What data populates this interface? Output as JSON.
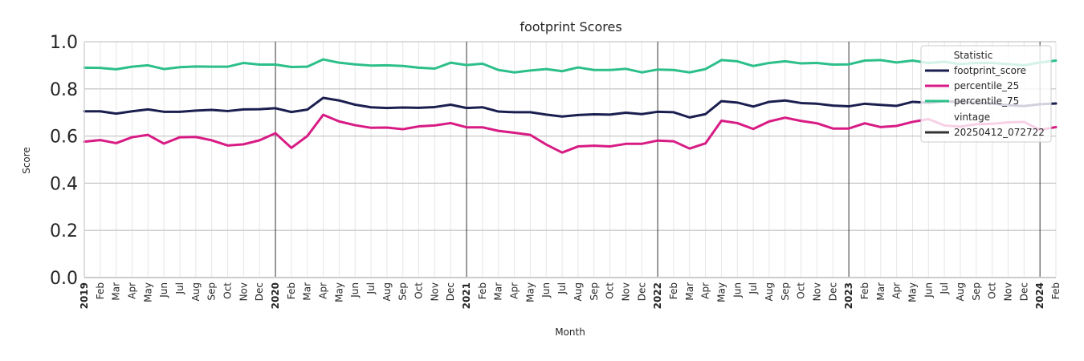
{
  "chart_data": {
    "type": "line",
    "title": "footprint Scores",
    "xlabel": "Month",
    "ylabel": "Score",
    "ylim": [
      0,
      1
    ],
    "yticks": [
      "0.0",
      "0.2",
      "0.4",
      "0.6",
      "0.8",
      "1.0"
    ],
    "grid": true,
    "legend_position": "top-right",
    "x": [
      "2019",
      "Feb",
      "Mar",
      "Apr",
      "May",
      "Jun",
      "Jul",
      "Aug",
      "Sep",
      "Oct",
      "Nov",
      "Dec",
      "2020",
      "Feb",
      "Mar",
      "Apr",
      "May",
      "Jun",
      "Jul",
      "Aug",
      "Sep",
      "Oct",
      "Nov",
      "Dec",
      "2021",
      "Feb",
      "Mar",
      "Apr",
      "May",
      "Jun",
      "Jul",
      "Aug",
      "Sep",
      "Oct",
      "Nov",
      "Dec",
      "2022",
      "Feb",
      "Mar",
      "Apr",
      "May",
      "Jun",
      "Jul",
      "Aug",
      "Sep",
      "Oct",
      "Nov",
      "Dec",
      "2023",
      "Feb",
      "Mar",
      "Apr",
      "May",
      "Jun",
      "Jul",
      "Aug",
      "Sep",
      "Oct",
      "Nov",
      "Dec",
      "2024",
      "Feb"
    ],
    "year_labels": [
      "2019",
      "2020",
      "2021",
      "2022",
      "2023",
      "2024"
    ],
    "legend": {
      "title": "Statistic",
      "entries": [
        "footprint_score",
        "percentile_25",
        "percentile_75"
      ],
      "vintage_title": "vintage",
      "vintage_entry": "20250412_072722"
    },
    "series": [
      {
        "name": "footprint_score",
        "color": "#1b1f4f",
        "values": [
          0.705,
          0.705,
          0.695,
          0.705,
          0.713,
          0.703,
          0.703,
          0.708,
          0.711,
          0.706,
          0.713,
          0.714,
          0.718,
          0.702,
          0.712,
          0.762,
          0.751,
          0.733,
          0.722,
          0.719,
          0.721,
          0.72,
          0.723,
          0.733,
          0.719,
          0.722,
          0.704,
          0.701,
          0.701,
          0.691,
          0.683,
          0.689,
          0.692,
          0.691,
          0.699,
          0.693,
          0.703,
          0.701,
          0.679,
          0.693,
          0.748,
          0.742,
          0.725,
          0.745,
          0.751,
          0.74,
          0.737,
          0.729,
          0.726,
          0.737,
          0.732,
          0.728,
          0.745,
          0.741,
          0.748,
          0.744,
          0.741,
          0.738,
          0.731,
          0.727,
          0.735,
          0.738
        ]
      },
      {
        "name": "percentile_25",
        "color": "#d81b84",
        "values": [
          0.576,
          0.583,
          0.57,
          0.595,
          0.605,
          0.568,
          0.595,
          0.596,
          0.582,
          0.56,
          0.565,
          0.582,
          0.612,
          0.55,
          0.6,
          0.69,
          0.662,
          0.646,
          0.635,
          0.636,
          0.629,
          0.641,
          0.645,
          0.655,
          0.637,
          0.637,
          0.622,
          0.614,
          0.605,
          0.564,
          0.53,
          0.556,
          0.559,
          0.556,
          0.567,
          0.567,
          0.581,
          0.578,
          0.547,
          0.569,
          0.665,
          0.655,
          0.63,
          0.662,
          0.678,
          0.664,
          0.654,
          0.632,
          0.632,
          0.654,
          0.638,
          0.643,
          0.66,
          0.672,
          0.645,
          0.64,
          0.65,
          0.652,
          0.658,
          0.66,
          0.626,
          0.638
        ]
      },
      {
        "name": "percentile_75",
        "color": "#2cbf8a",
        "values": [
          0.89,
          0.889,
          0.883,
          0.894,
          0.9,
          0.884,
          0.892,
          0.895,
          0.894,
          0.894,
          0.91,
          0.903,
          0.903,
          0.893,
          0.894,
          0.925,
          0.911,
          0.904,
          0.899,
          0.9,
          0.897,
          0.89,
          0.886,
          0.911,
          0.901,
          0.907,
          0.88,
          0.87,
          0.878,
          0.884,
          0.875,
          0.891,
          0.88,
          0.88,
          0.885,
          0.87,
          0.882,
          0.88,
          0.87,
          0.884,
          0.922,
          0.917,
          0.897,
          0.91,
          0.917,
          0.908,
          0.91,
          0.903,
          0.904,
          0.92,
          0.922,
          0.912,
          0.92,
          0.91,
          0.915,
          0.905,
          0.91,
          0.91,
          0.905,
          0.9,
          0.912,
          0.92
        ]
      }
    ],
    "vintage_color": "#333333"
  }
}
